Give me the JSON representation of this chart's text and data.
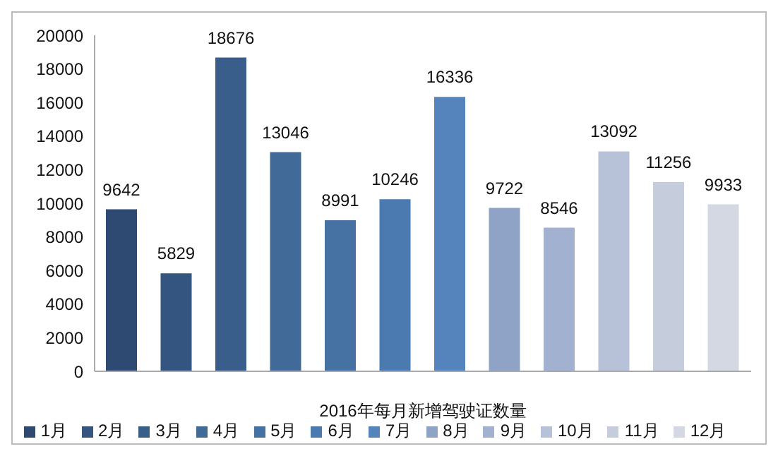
{
  "chart_data": {
    "type": "bar",
    "xlabel": "2016年每月新增驾驶证数量",
    "categories": [
      null,
      null,
      null,
      null,
      null,
      null,
      null,
      null,
      null,
      null,
      null,
      null
    ],
    "series": [
      {
        "name": "1月",
        "color": "#2e4a73",
        "values": [
          9642,
          null,
          null,
          null,
          null,
          null,
          null,
          null,
          null,
          null,
          null,
          null
        ]
      },
      {
        "name": "2月",
        "color": "#34557f",
        "values": [
          null,
          5829,
          null,
          null,
          null,
          null,
          null,
          null,
          null,
          null,
          null,
          null
        ]
      },
      {
        "name": "3月",
        "color": "#3a5e8c",
        "values": [
          null,
          null,
          18676,
          null,
          null,
          null,
          null,
          null,
          null,
          null,
          null,
          null
        ]
      },
      {
        "name": "4月",
        "color": "#416a98",
        "values": [
          null,
          null,
          null,
          13046,
          null,
          null,
          null,
          null,
          null,
          null,
          null,
          null
        ]
      },
      {
        "name": "5月",
        "color": "#4672a3",
        "values": [
          null,
          null,
          null,
          null,
          8991,
          null,
          null,
          null,
          null,
          null,
          null,
          null
        ]
      },
      {
        "name": "6月",
        "color": "#4a7ab0",
        "values": [
          null,
          null,
          null,
          null,
          null,
          10246,
          null,
          null,
          null,
          null,
          null,
          null
        ]
      },
      {
        "name": "7月",
        "color": "#5584bd",
        "values": [
          null,
          null,
          null,
          null,
          null,
          null,
          16336,
          null,
          null,
          null,
          null,
          null
        ]
      },
      {
        "name": "8月",
        "color": "#8ea3c6",
        "values": [
          null,
          null,
          null,
          null,
          null,
          null,
          null,
          9722,
          null,
          null,
          null,
          null
        ]
      },
      {
        "name": "9月",
        "color": "#a2b1d0",
        "values": [
          null,
          null,
          null,
          null,
          null,
          null,
          null,
          null,
          8546,
          null,
          null,
          null
        ]
      },
      {
        "name": "10月",
        "color": "#b7c1d8",
        "values": [
          null,
          null,
          null,
          null,
          null,
          null,
          null,
          null,
          null,
          13092,
          null,
          null
        ]
      },
      {
        "name": "11月",
        "color": "#c5ccdb",
        "values": [
          null,
          null,
          null,
          null,
          null,
          null,
          null,
          null,
          null,
          null,
          11256,
          null
        ]
      },
      {
        "name": "12月",
        "color": "#d4d8e2",
        "values": [
          null,
          null,
          null,
          null,
          null,
          null,
          null,
          null,
          null,
          null,
          null,
          9933
        ]
      }
    ],
    "stacked": true,
    "ylim": [
      0,
      20000
    ],
    "yticks": [
      0,
      2000,
      4000,
      6000,
      8000,
      10000,
      12000,
      14000,
      16000,
      18000,
      20000
    ],
    "data_labels": true,
    "legend": "bottom"
  }
}
